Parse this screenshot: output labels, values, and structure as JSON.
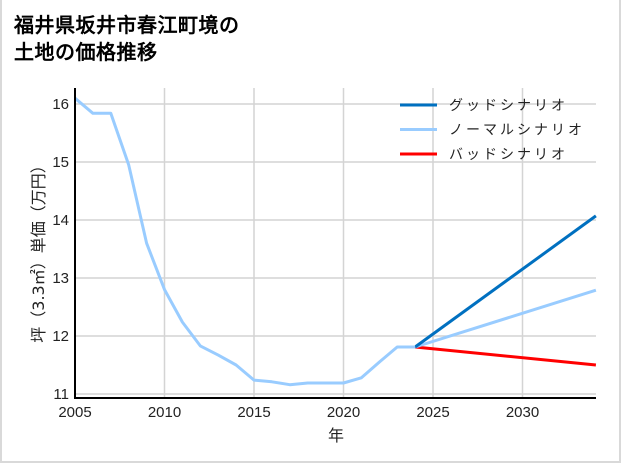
{
  "title_line1": "福井県坂井市春江町境の",
  "title_line2": "土地の価格推移",
  "chart_data": {
    "type": "line",
    "title": "福井県坂井市春江町境の土地の価格推移",
    "xlabel": "年",
    "ylabel": "坪（3.3㎡）単価（万円）",
    "xlim": [
      2005,
      2034.1
    ],
    "ylim": [
      10.9,
      16.25
    ],
    "xticks": [
      2005,
      2010,
      2015,
      2020,
      2025,
      2030
    ],
    "yticks": [
      11,
      12,
      13,
      14,
      15,
      16
    ],
    "grid": true,
    "legend_position": "upper right",
    "history": {
      "x": [
        2005,
        2006,
        2007,
        2008,
        2009,
        2010,
        2011,
        2012,
        2013,
        2014,
        2015,
        2016,
        2017,
        2018,
        2019,
        2020,
        2021,
        2022,
        2023,
        2024
      ],
      "values": [
        16.1,
        15.84,
        15.84,
        14.95,
        13.6,
        12.8,
        12.24,
        11.83,
        11.67,
        11.5,
        11.24,
        11.21,
        11.16,
        11.19,
        11.19,
        11.19,
        11.28,
        11.55,
        11.81,
        11.81
      ],
      "color": "#99ccff"
    },
    "series": [
      {
        "name": "グッドシナリオ",
        "color": "#0070c0",
        "x": [
          2024,
          2034.1
        ],
        "values": [
          11.81,
          14.07
        ]
      },
      {
        "name": "ノーマルシナリオ",
        "color": "#99ccff",
        "x": [
          2024,
          2034.1
        ],
        "values": [
          11.81,
          12.79
        ]
      },
      {
        "name": "バッドシナリオ",
        "color": "#ff0000",
        "x": [
          2024,
          2034.1
        ],
        "values": [
          11.81,
          11.5
        ]
      }
    ]
  }
}
